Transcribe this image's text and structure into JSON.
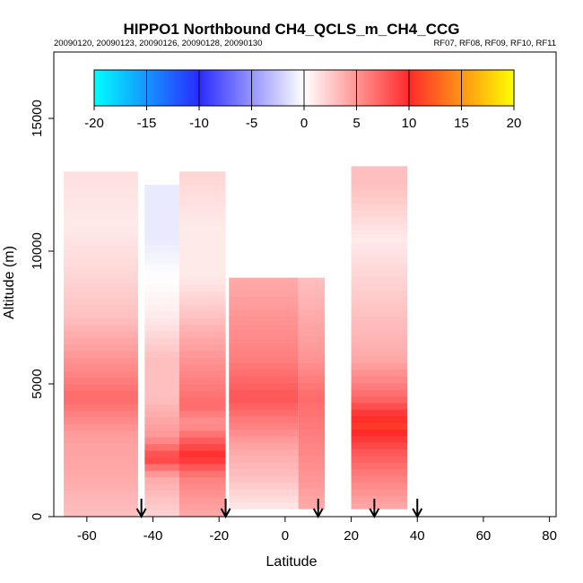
{
  "chart_data": {
    "type": "heatmap",
    "title": "HIPPO1 Northbound CH4_QCLS_m_CH4_CCG",
    "subtitle_left": "20090120, 20090123, 20090126, 20090128, 20090130",
    "subtitle_right": "RF07, RF08, RF09, RF10, RF11",
    "xlabel": "Latitude",
    "ylabel": "Altitude (m)",
    "xlim": [
      -70,
      82
    ],
    "ylim": [
      0,
      17500
    ],
    "xticks": [
      -60,
      -40,
      -20,
      0,
      20,
      40,
      60,
      80
    ],
    "yticks": [
      0,
      5000,
      10000,
      15000
    ],
    "colorbar": {
      "ticks": [
        -20,
        -15,
        -10,
        -5,
        0,
        5,
        10,
        15,
        20
      ],
      "range": [
        -20,
        20
      ],
      "stops": [
        {
          "value": -20,
          "color": "#00ffff"
        },
        {
          "value": -10,
          "color": "#2a2aff"
        },
        {
          "value": 0,
          "color": "#ffffff"
        },
        {
          "value": 10,
          "color": "#ff2a2a"
        },
        {
          "value": 20,
          "color": "#ffff00"
        }
      ]
    },
    "arrow_latitudes": [
      -43.5,
      -18,
      10,
      27,
      40
    ],
    "curtains": [
      {
        "lat_start": -67,
        "lat_end": -44.5,
        "alt_top": 13000,
        "alt_bottom": 0,
        "profile": [
          [
            0,
            3
          ],
          [
            1500,
            4
          ],
          [
            3000,
            4.5
          ],
          [
            4500,
            7
          ],
          [
            6000,
            5
          ],
          [
            7500,
            3
          ],
          [
            9000,
            2
          ],
          [
            11000,
            1
          ],
          [
            13000,
            1.5
          ]
        ]
      },
      {
        "lat_start": -42.5,
        "lat_end": -32,
        "alt_top": 12500,
        "alt_bottom": 0,
        "profile": [
          [
            0,
            2
          ],
          [
            1500,
            4
          ],
          [
            2200,
            9
          ],
          [
            3000,
            5
          ],
          [
            4500,
            3
          ],
          [
            6000,
            3
          ],
          [
            7500,
            1
          ],
          [
            9000,
            0
          ],
          [
            10500,
            -1
          ],
          [
            12500,
            -1
          ]
        ]
      },
      {
        "lat_start": -32,
        "lat_end": -18,
        "alt_top": 13000,
        "alt_bottom": 0,
        "profile": [
          [
            0,
            4
          ],
          [
            1500,
            6
          ],
          [
            2300,
            10
          ],
          [
            3500,
            5
          ],
          [
            4200,
            7
          ],
          [
            6000,
            5
          ],
          [
            7500,
            3
          ],
          [
            9000,
            1
          ],
          [
            11000,
            1
          ],
          [
            13000,
            2
          ]
        ]
      },
      {
        "lat_start": -17,
        "lat_end": 4,
        "alt_top": 9000,
        "alt_bottom": 300,
        "profile": [
          [
            300,
            1
          ],
          [
            1500,
            3
          ],
          [
            2500,
            4
          ],
          [
            3500,
            6
          ],
          [
            4500,
            8
          ],
          [
            6000,
            6
          ],
          [
            7500,
            5
          ],
          [
            9000,
            4
          ]
        ]
      },
      {
        "lat_start": 4,
        "lat_end": 12,
        "alt_top": 9000,
        "alt_bottom": 300,
        "profile": [
          [
            300,
            4
          ],
          [
            1500,
            5
          ],
          [
            3000,
            6
          ],
          [
            4500,
            7
          ],
          [
            6000,
            5
          ],
          [
            7500,
            4
          ],
          [
            9000,
            3
          ]
        ]
      },
      {
        "lat_start": 20,
        "lat_end": 37,
        "alt_top": 13200,
        "alt_bottom": 300,
        "profile": [
          [
            300,
            4
          ],
          [
            1500,
            6
          ],
          [
            2500,
            8
          ],
          [
            3500,
            11
          ],
          [
            4500,
            7
          ],
          [
            6000,
            4
          ],
          [
            7500,
            3
          ],
          [
            9000,
            2
          ],
          [
            10500,
            1
          ],
          [
            12500,
            3
          ],
          [
            13200,
            3
          ]
        ]
      }
    ]
  }
}
